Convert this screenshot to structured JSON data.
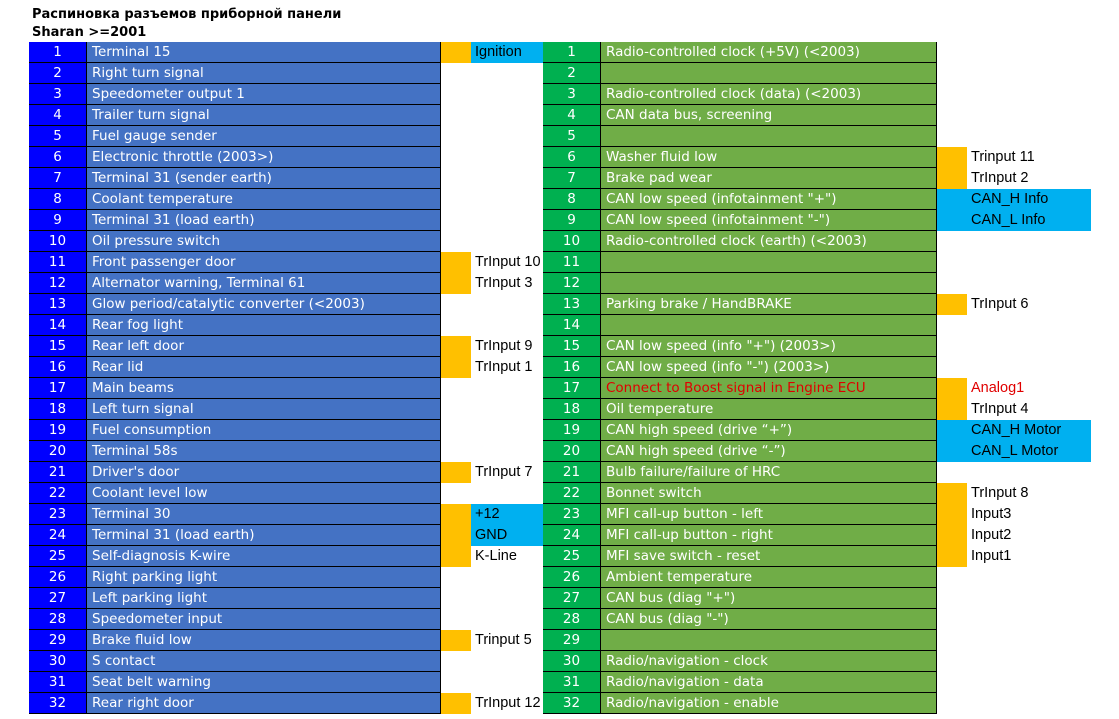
{
  "title_line1": "Распиновка разъемов приборной панели",
  "title_line2": "Sharan >=2001",
  "left_rows": [
    {
      "n": "1",
      "label": "Terminal 15",
      "mark": "yellow",
      "tag": "Ignition",
      "tag_bg": "cyan"
    },
    {
      "n": "2",
      "label": "Right turn signal",
      "mark": "",
      "tag": "",
      "tag_bg": ""
    },
    {
      "n": "3",
      "label": "Speedometer output 1",
      "mark": "",
      "tag": "",
      "tag_bg": ""
    },
    {
      "n": "4",
      "label": "Trailer turn signal",
      "mark": "",
      "tag": "",
      "tag_bg": ""
    },
    {
      "n": "5",
      "label": "Fuel gauge sender",
      "mark": "",
      "tag": "",
      "tag_bg": ""
    },
    {
      "n": "6",
      "label": "Electronic throttle (2003>)",
      "mark": "",
      "tag": "",
      "tag_bg": ""
    },
    {
      "n": "7",
      "label": "Terminal 31 (sender earth)",
      "mark": "",
      "tag": "",
      "tag_bg": ""
    },
    {
      "n": "8",
      "label": "Coolant temperature",
      "mark": "",
      "tag": "",
      "tag_bg": ""
    },
    {
      "n": "9",
      "label": "Terminal 31 (load earth)",
      "mark": "",
      "tag": "",
      "tag_bg": ""
    },
    {
      "n": "10",
      "label": "Oil pressure switch",
      "mark": "",
      "tag": "",
      "tag_bg": ""
    },
    {
      "n": "11",
      "label": "Front passenger door",
      "mark": "yellow",
      "tag": "TrInput 10",
      "tag_bg": ""
    },
    {
      "n": "12",
      "label": "Alternator warning, Terminal 61",
      "mark": "yellow",
      "tag": "TrInput 3",
      "tag_bg": ""
    },
    {
      "n": "13",
      "label": "Glow period/catalytic converter (<2003)",
      "mark": "",
      "tag": "",
      "tag_bg": ""
    },
    {
      "n": "14",
      "label": "Rear fog light",
      "mark": "",
      "tag": "",
      "tag_bg": ""
    },
    {
      "n": "15",
      "label": "Rear left door",
      "mark": "yellow",
      "tag": "TrInput 9",
      "tag_bg": ""
    },
    {
      "n": "16",
      "label": "Rear lid",
      "mark": "yellow",
      "tag": "TrInput 1",
      "tag_bg": ""
    },
    {
      "n": "17",
      "label": "Main beams",
      "mark": "",
      "tag": "",
      "tag_bg": ""
    },
    {
      "n": "18",
      "label": "Left turn signal",
      "mark": "",
      "tag": "",
      "tag_bg": ""
    },
    {
      "n": "19",
      "label": "Fuel consumption",
      "mark": "",
      "tag": "",
      "tag_bg": ""
    },
    {
      "n": "20",
      "label": "Terminal 58s",
      "mark": "",
      "tag": "",
      "tag_bg": ""
    },
    {
      "n": "21",
      "label": "Driver's door",
      "mark": "yellow",
      "tag": "TrInput 7",
      "tag_bg": ""
    },
    {
      "n": "22",
      "label": "Coolant level low",
      "mark": "",
      "tag": "",
      "tag_bg": ""
    },
    {
      "n": "23",
      "label": "Terminal 30",
      "mark": "yellow",
      "tag": "+12",
      "tag_bg": "cyan"
    },
    {
      "n": "24",
      "label": "Terminal 31 (load earth)",
      "mark": "yellow",
      "tag": "GND",
      "tag_bg": "cyan"
    },
    {
      "n": "25",
      "label": "Self-diagnosis K-wire",
      "mark": "yellow",
      "tag": "K-Line",
      "tag_bg": ""
    },
    {
      "n": "26",
      "label": "Right parking light",
      "mark": "",
      "tag": "",
      "tag_bg": ""
    },
    {
      "n": "27",
      "label": "Left parking light",
      "mark": "",
      "tag": "",
      "tag_bg": ""
    },
    {
      "n": "28",
      "label": "Speedometer input",
      "mark": "",
      "tag": "",
      "tag_bg": ""
    },
    {
      "n": "29",
      "label": "Brake fluid low",
      "mark": "yellow",
      "tag": "Trinput 5",
      "tag_bg": ""
    },
    {
      "n": "30",
      "label": "S contact",
      "mark": "",
      "tag": "",
      "tag_bg": ""
    },
    {
      "n": "31",
      "label": "Seat belt warning",
      "mark": "",
      "tag": "",
      "tag_bg": ""
    },
    {
      "n": "32",
      "label": "Rear right door",
      "mark": "yellow",
      "tag": "TrInput 12",
      "tag_bg": ""
    }
  ],
  "right_rows": [
    {
      "n": "1",
      "label": "Radio-controlled clock (+5V) (<2003)",
      "mark": "",
      "tag": "",
      "tag_bg": "",
      "red": false
    },
    {
      "n": "2",
      "label": "",
      "mark": "",
      "tag": "",
      "tag_bg": "",
      "red": false
    },
    {
      "n": "3",
      "label": "Radio-controlled clock (data) (<2003)",
      "mark": "",
      "tag": "",
      "tag_bg": "",
      "red": false
    },
    {
      "n": "4",
      "label": "CAN data bus, screening",
      "mark": "",
      "tag": "",
      "tag_bg": "",
      "red": false
    },
    {
      "n": "5",
      "label": "",
      "mark": "",
      "tag": "",
      "tag_bg": "",
      "red": false
    },
    {
      "n": "6",
      "label": "Washer fluid low",
      "mark": "yellow",
      "tag": "Trinput 11",
      "tag_bg": "",
      "red": false
    },
    {
      "n": "7",
      "label": "Brake pad wear",
      "mark": "yellow",
      "tag": "TrInput 2",
      "tag_bg": "",
      "red": false
    },
    {
      "n": "8",
      "label": "CAN low speed (infotainment \"+\")",
      "mark": "cyan",
      "tag": "CAN_H Info",
      "tag_bg": "cyan",
      "red": false
    },
    {
      "n": "9",
      "label": "CAN low speed (infotainment \"-\")",
      "mark": "cyan",
      "tag": "CAN_L Info",
      "tag_bg": "cyan",
      "red": false
    },
    {
      "n": "10",
      "label": "Radio-controlled clock (earth) (<2003)",
      "mark": "",
      "tag": "",
      "tag_bg": "",
      "red": false
    },
    {
      "n": "11",
      "label": "",
      "mark": "",
      "tag": "",
      "tag_bg": "",
      "red": false
    },
    {
      "n": "12",
      "label": "",
      "mark": "",
      "tag": "",
      "tag_bg": "",
      "red": false
    },
    {
      "n": "13",
      "label": "Parking brake / HandBRAKE",
      "mark": "yellow",
      "tag": "TrInput 6",
      "tag_bg": "",
      "red": false
    },
    {
      "n": "14",
      "label": "",
      "mark": "",
      "tag": "",
      "tag_bg": "",
      "red": false
    },
    {
      "n": "15",
      "label": "CAN low speed (info \"+\") (2003>)",
      "mark": "",
      "tag": "",
      "tag_bg": "",
      "red": false
    },
    {
      "n": "16",
      "label": "CAN low speed (info \"-\") (2003>)",
      "mark": "",
      "tag": "",
      "tag_bg": "",
      "red": false
    },
    {
      "n": "17",
      "label": "Connect to Boost signal in Engine ECU",
      "mark": "yellow",
      "tag": "Analog1",
      "tag_bg": "",
      "red": true
    },
    {
      "n": "18",
      "label": "Oil temperature",
      "mark": "yellow",
      "tag": "TrInput 4",
      "tag_bg": "",
      "red": false
    },
    {
      "n": "19",
      "label": "CAN high speed (drive “+”)",
      "mark": "cyan",
      "tag": "CAN_H Motor",
      "tag_bg": "cyan",
      "red": false
    },
    {
      "n": "20",
      "label": "CAN high speed (drive “-”)",
      "mark": "cyan",
      "tag": "CAN_L Motor",
      "tag_bg": "cyan",
      "red": false
    },
    {
      "n": "21",
      "label": "Bulb failure/failure of HRC",
      "mark": "",
      "tag": "",
      "tag_bg": "",
      "red": false
    },
    {
      "n": "22",
      "label": "Bonnet switch",
      "mark": "yellow",
      "tag": "TrInput 8",
      "tag_bg": "",
      "red": false
    },
    {
      "n": "23",
      "label": "MFI call-up button - left",
      "mark": "yellow",
      "tag": "Input3",
      "tag_bg": "",
      "red": false
    },
    {
      "n": "24",
      "label": "MFI call-up button - right",
      "mark": "yellow",
      "tag": "Input2",
      "tag_bg": "",
      "red": false
    },
    {
      "n": "25",
      "label": "MFI save switch - reset",
      "mark": "yellow",
      "tag": "Input1",
      "tag_bg": "",
      "red": false
    },
    {
      "n": "26",
      "label": "Ambient temperature",
      "mark": "",
      "tag": "",
      "tag_bg": "",
      "red": false
    },
    {
      "n": "27",
      "label": "CAN bus (diag \"+\")",
      "mark": "",
      "tag": "",
      "tag_bg": "",
      "red": false
    },
    {
      "n": "28",
      "label": "CAN bus (diag \"-\")",
      "mark": "",
      "tag": "",
      "tag_bg": "",
      "red": false
    },
    {
      "n": "29",
      "label": "",
      "mark": "",
      "tag": "",
      "tag_bg": "",
      "red": false
    },
    {
      "n": "30",
      "label": "Radio/navigation - clock",
      "mark": "",
      "tag": "",
      "tag_bg": "",
      "red": false
    },
    {
      "n": "31",
      "label": "Radio/navigation - data",
      "mark": "",
      "tag": "",
      "tag_bg": "",
      "red": false
    },
    {
      "n": "32",
      "label": "Radio/navigation - enable",
      "mark": "",
      "tag": "",
      "tag_bg": "",
      "red": false
    }
  ],
  "colors": {
    "left_num_bg": "#0000ff",
    "left_desc_bg": "#4472c4",
    "right_num_bg": "#00b050",
    "right_desc_bg": "#70ad47",
    "mark_yellow": "#ffc000",
    "tag_cyan": "#00b0f0",
    "red_text": "#e00000"
  }
}
